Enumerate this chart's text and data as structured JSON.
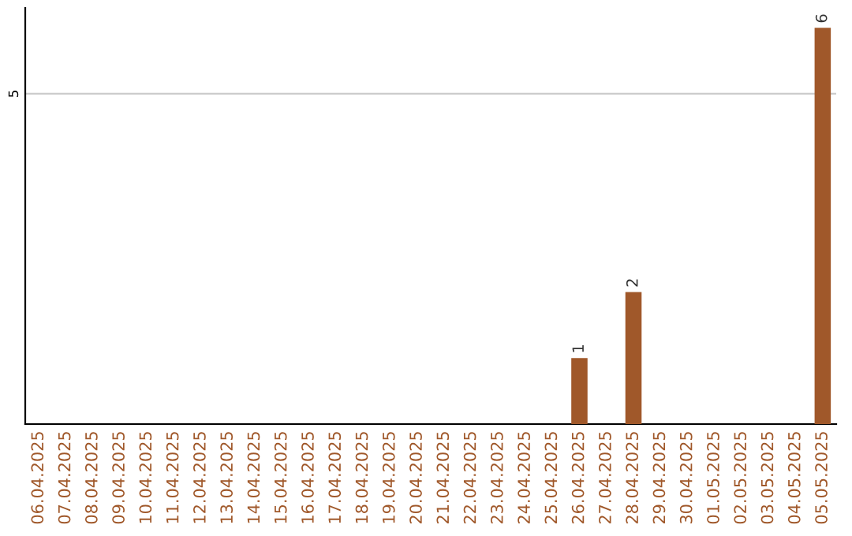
{
  "chart_data": {
    "type": "bar",
    "categories": [
      "06.04.2025",
      "07.04.2025",
      "08.04.2025",
      "09.04.2025",
      "10.04.2025",
      "11.04.2025",
      "12.04.2025",
      "13.04.2025",
      "14.04.2025",
      "15.04.2025",
      "16.04.2025",
      "17.04.2025",
      "18.04.2025",
      "19.04.2025",
      "20.04.2025",
      "21.04.2025",
      "22.04.2025",
      "23.04.2025",
      "24.04.2025",
      "25.04.2025",
      "26.04.2025",
      "27.04.2025",
      "28.04.2025",
      "29.04.2025",
      "30.04.2025",
      "01.05.2025",
      "02.05.2025",
      "03.05.2025",
      "04.05.2025",
      "05.05.2025"
    ],
    "values": [
      null,
      null,
      null,
      null,
      null,
      null,
      null,
      null,
      null,
      null,
      null,
      null,
      null,
      null,
      null,
      null,
      null,
      null,
      null,
      null,
      1,
      null,
      2,
      null,
      null,
      null,
      null,
      null,
      null,
      6
    ],
    "data_labels": true,
    "color": "#a0582a",
    "ylim": [
      0,
      6.3
    ],
    "yticks": [
      5
    ],
    "grid": "y"
  }
}
